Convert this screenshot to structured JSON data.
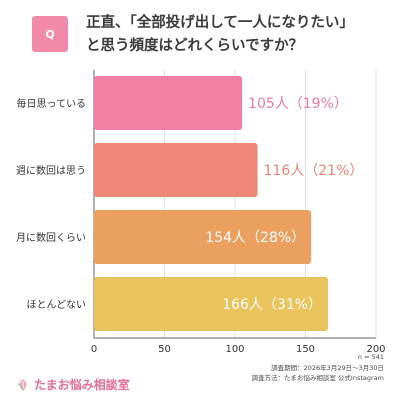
{
  "question": {
    "badge": "Q",
    "title_line1": "正直、「全部投げ出して一人になりたい」",
    "title_line2": "と思う頻度はどれくらいですか？"
  },
  "chart_data": {
    "type": "bar",
    "orientation": "horizontal",
    "categories": [
      "毎日思っている",
      "週に数回は思う",
      "月に数回くらい",
      "ほとんどない"
    ],
    "values": [
      105,
      116,
      154,
      166
    ],
    "data_labels": [
      "105人（19%）",
      "116人（21%）",
      "154人（28%）",
      "166人（31%）"
    ],
    "percentages": [
      19,
      21,
      28,
      31
    ],
    "colors": [
      "#f07fa3",
      "#ee8777",
      "#eba05f",
      "#e9c45c"
    ],
    "label_colors": [
      "#e87aa0",
      "#e88676",
      "#ffffff",
      "#ffffff"
    ],
    "xlim": [
      0,
      200
    ],
    "xticks": [
      "0",
      "50",
      "100",
      "150",
      "200"
    ],
    "grid": true
  },
  "meta": {
    "n": "n = 541",
    "period": "調査期間：2026年3月29日～3月30日",
    "method": "調査方法：たまお悩み相談室 公式Instagram"
  },
  "brand": {
    "name": "たまお悩み相談室",
    "logo_icon": "leaf-icon",
    "color": "#e66f95"
  }
}
